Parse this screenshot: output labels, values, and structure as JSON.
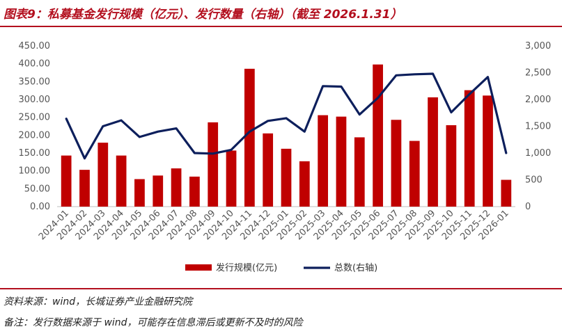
{
  "figure_title": "图表9：私募基金发行规模（亿元）、发行数量（右轴）（截至 2026.1.31）",
  "source": "资料来源：wind，长城证券产业金融研究院",
  "remark": "备注：发行数据来源于 wind，可能存在信息滞后或更新不及时的风险",
  "colors": {
    "bar": "#c00000",
    "line": "#0d1f5c",
    "accent": "#b30f1e"
  },
  "chart_data": {
    "type": "bar+line",
    "categories": [
      "2024-01",
      "2024-02",
      "2024-03",
      "2024-04",
      "2024-05",
      "2024-06",
      "2024-07",
      "2024-08",
      "2024-09",
      "2024-10",
      "2024-11",
      "2024-12",
      "2025-01",
      "2025-02",
      "2025-03",
      "2025-04",
      "2025-05",
      "2025-06",
      "2025-07",
      "2025-08",
      "2025-09",
      "2025-10",
      "2025-11",
      "2025-12",
      "2026-01"
    ],
    "series": [
      {
        "name": "发行规模(亿元)",
        "type": "bar",
        "axis": "left",
        "values": [
          143,
          103,
          179,
          143,
          77,
          87,
          107,
          84,
          236,
          157,
          386,
          205,
          162,
          127,
          256,
          252,
          194,
          398,
          243,
          184,
          306,
          228,
          326,
          311,
          75
        ]
      },
      {
        "name": "总数(右轴)",
        "type": "line",
        "axis": "right",
        "values": [
          1640,
          900,
          1500,
          1610,
          1300,
          1400,
          1460,
          1000,
          990,
          1060,
          1400,
          1600,
          1650,
          1400,
          2250,
          2240,
          1720,
          2030,
          2450,
          2470,
          2480,
          1760,
          2100,
          2420,
          1000
        ]
      }
    ],
    "ylim_left": [
      0,
      450
    ],
    "yticks_left": [
      "0.00",
      "50.00",
      "100.00",
      "150.00",
      "200.00",
      "250.00",
      "300.00",
      "350.00",
      "400.00",
      "450.00"
    ],
    "ylim_right": [
      0,
      3000
    ],
    "yticks_right": [
      "0",
      "500",
      "1,000",
      "1,500",
      "2,000",
      "2,500",
      "3,000"
    ],
    "legend_position": "bottom",
    "grid": false
  }
}
